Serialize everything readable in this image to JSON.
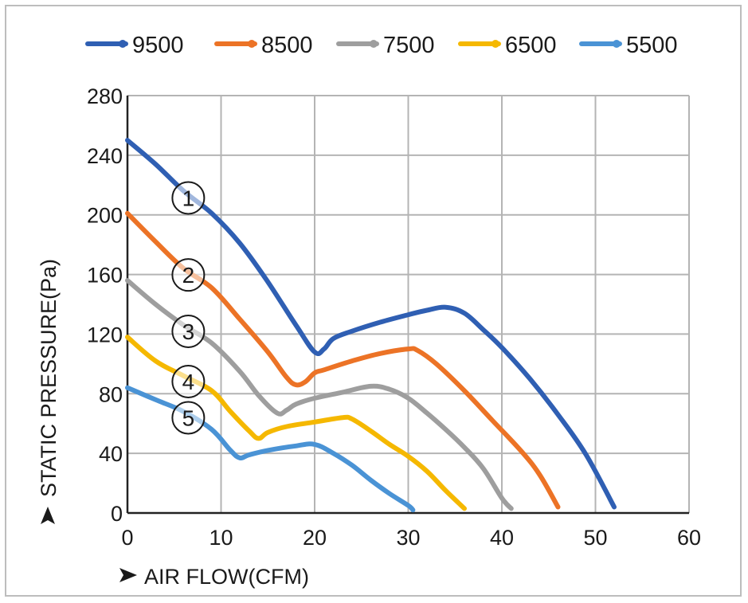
{
  "chart_data": {
    "type": "line",
    "xlabel": "AIR FLOW(CFM)",
    "ylabel": "STATIC PRESSURE(Pa)",
    "xlim": [
      0,
      60
    ],
    "ylim": [
      0,
      280
    ],
    "x_ticks": [
      "0",
      "10",
      "20",
      "30",
      "40",
      "50",
      "60"
    ],
    "y_ticks": [
      "0",
      "40",
      "80",
      "120",
      "160",
      "200",
      "240",
      "280"
    ],
    "grid": true,
    "legend_position": "top",
    "series": [
      {
        "name": "9500",
        "color": "#2f5fb3",
        "marker": "①",
        "points": [
          [
            0,
            250
          ],
          [
            3,
            234
          ],
          [
            6,
            216
          ],
          [
            9,
            201
          ],
          [
            12,
            181
          ],
          [
            15,
            155
          ],
          [
            18,
            126
          ],
          [
            20,
            108
          ],
          [
            21,
            110
          ],
          [
            22,
            117
          ],
          [
            24,
            122
          ],
          [
            27,
            128
          ],
          [
            30,
            133
          ],
          [
            32,
            136
          ],
          [
            34,
            138
          ],
          [
            36,
            134
          ],
          [
            38,
            123
          ],
          [
            40,
            111
          ],
          [
            43,
            90
          ],
          [
            46,
            66
          ],
          [
            49,
            39
          ],
          [
            52,
            4
          ]
        ]
      },
      {
        "name": "8500",
        "color": "#ec7326",
        "marker": "②",
        "points": [
          [
            0,
            201
          ],
          [
            3,
            182
          ],
          [
            6,
            164
          ],
          [
            9,
            151
          ],
          [
            12,
            130
          ],
          [
            15,
            108
          ],
          [
            17,
            91
          ],
          [
            18,
            86
          ],
          [
            19,
            88
          ],
          [
            20,
            94
          ],
          [
            21,
            96
          ],
          [
            24,
            102
          ],
          [
            27,
            107
          ],
          [
            30,
            110
          ],
          [
            31,
            109
          ],
          [
            33,
            100
          ],
          [
            36,
            82
          ],
          [
            39,
            62
          ],
          [
            42,
            42
          ],
          [
            44,
            26
          ],
          [
            46,
            4
          ]
        ]
      },
      {
        "name": "7500",
        "color": "#9e9e9e",
        "marker": "③",
        "points": [
          [
            0,
            156
          ],
          [
            3,
            140
          ],
          [
            6,
            126
          ],
          [
            9,
            114
          ],
          [
            12,
            95
          ],
          [
            14,
            79
          ],
          [
            16,
            67
          ],
          [
            17,
            69
          ],
          [
            18,
            73
          ],
          [
            20,
            77
          ],
          [
            23,
            81
          ],
          [
            26,
            85
          ],
          [
            28,
            83
          ],
          [
            30,
            77
          ],
          [
            32,
            67
          ],
          [
            34,
            56
          ],
          [
            36,
            44
          ],
          [
            38,
            30
          ],
          [
            40,
            10
          ],
          [
            41,
            3
          ]
        ]
      },
      {
        "name": "6500",
        "color": "#f5b800",
        "marker": "④",
        "points": [
          [
            0,
            118
          ],
          [
            3,
            102
          ],
          [
            6,
            92
          ],
          [
            9,
            82
          ],
          [
            11,
            68
          ],
          [
            13,
            55
          ],
          [
            14,
            50
          ],
          [
            15,
            54
          ],
          [
            17,
            58
          ],
          [
            20,
            61
          ],
          [
            23,
            64
          ],
          [
            24,
            63
          ],
          [
            26,
            55
          ],
          [
            28,
            46
          ],
          [
            30,
            38
          ],
          [
            32,
            28
          ],
          [
            34,
            15
          ],
          [
            36,
            3
          ]
        ]
      },
      {
        "name": "5500",
        "color": "#4a93d5",
        "marker": "⑤",
        "points": [
          [
            0,
            84
          ],
          [
            3,
            76
          ],
          [
            6,
            68
          ],
          [
            9,
            56
          ],
          [
            11,
            42
          ],
          [
            12,
            37
          ],
          [
            13,
            39
          ],
          [
            15,
            42
          ],
          [
            18,
            45
          ],
          [
            20,
            46
          ],
          [
            22,
            40
          ],
          [
            24,
            32
          ],
          [
            26,
            22
          ],
          [
            28,
            13
          ],
          [
            30,
            5
          ],
          [
            30.5,
            2
          ]
        ]
      }
    ]
  }
}
